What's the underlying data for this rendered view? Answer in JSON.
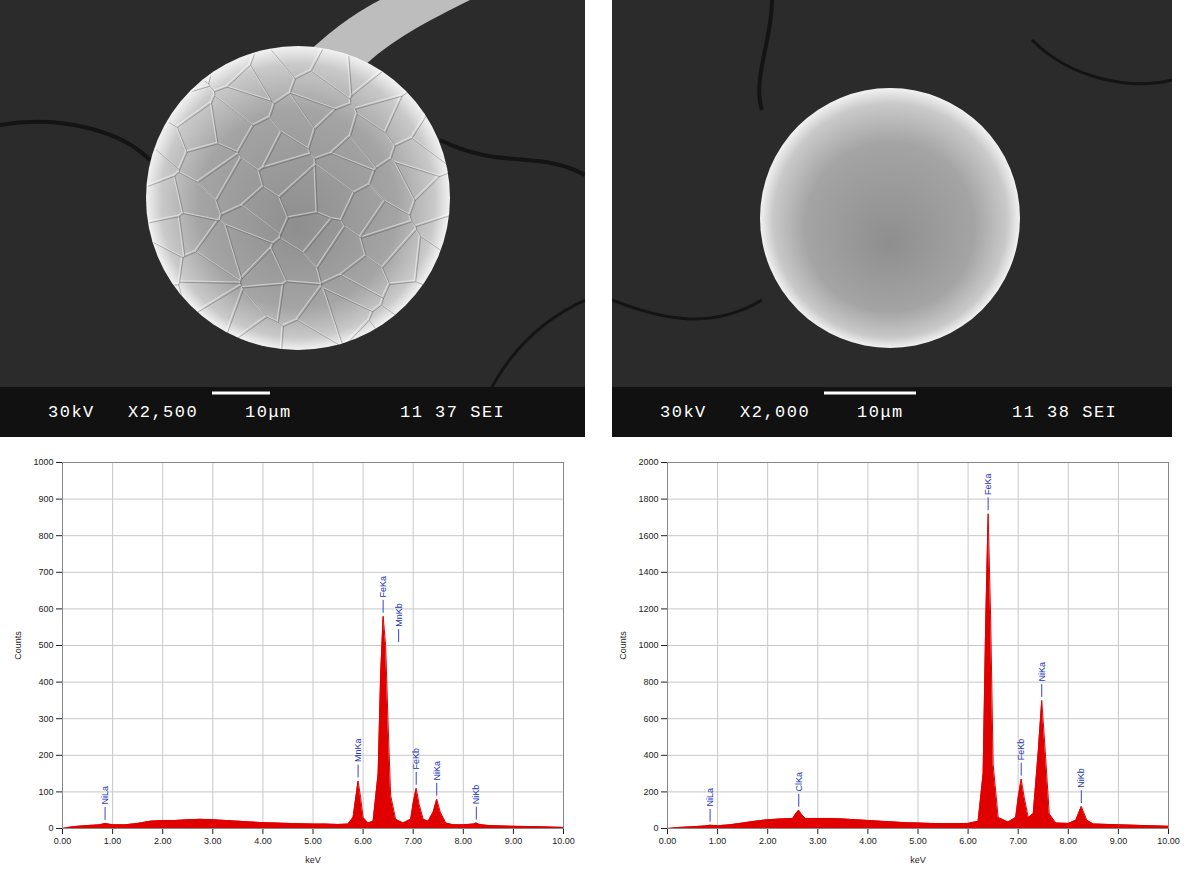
{
  "images": [
    {
      "labels": [
        "30kV",
        "X2,500",
        "10μm",
        "11 37 SEI"
      ]
    },
    {
      "labels": [
        "30kV",
        "X2,000",
        "10μm",
        "11 38 SEI"
      ]
    }
  ],
  "chart_data": [
    {
      "type": "area",
      "xlabel": "keV",
      "ylabel": "Counts",
      "color": "#e00000",
      "grid": true,
      "xlim": [
        0,
        10
      ],
      "ylim": [
        0,
        1000
      ],
      "xticks": [
        {
          "value": 0,
          "label": "0.00"
        },
        {
          "value": 1,
          "label": "1.00"
        },
        {
          "value": 2,
          "label": "2.00"
        },
        {
          "value": 3,
          "label": "3.00"
        },
        {
          "value": 4,
          "label": "4.00"
        },
        {
          "value": 5,
          "label": "5.00"
        },
        {
          "value": 6,
          "label": "6.00"
        },
        {
          "value": 7,
          "label": "7.00"
        },
        {
          "value": 8,
          "label": "8.00"
        },
        {
          "value": 9,
          "label": "9.00"
        },
        {
          "value": 10,
          "label": "10.00"
        }
      ],
      "yticks": [
        0,
        100,
        200,
        300,
        400,
        500,
        600,
        700,
        800,
        900,
        1000
      ],
      "x": [
        0.0,
        0.2,
        0.5,
        0.75,
        0.85,
        1.0,
        1.25,
        1.5,
        1.75,
        2.0,
        2.25,
        2.5,
        2.75,
        3.0,
        3.25,
        3.5,
        3.75,
        4.0,
        4.25,
        4.5,
        4.75,
        5.0,
        5.25,
        5.5,
        5.7,
        5.8,
        5.85,
        5.9,
        5.95,
        6.0,
        6.1,
        6.2,
        6.3,
        6.35,
        6.4,
        6.45,
        6.5,
        6.55,
        6.65,
        6.8,
        6.95,
        7.0,
        7.06,
        7.12,
        7.2,
        7.3,
        7.4,
        7.47,
        7.54,
        7.65,
        7.8,
        8.0,
        8.2,
        8.26,
        8.32,
        8.5,
        9.0,
        9.5,
        10.0
      ],
      "values": [
        0,
        5,
        8,
        10,
        14,
        10,
        10,
        14,
        20,
        22,
        22,
        24,
        25,
        24,
        22,
        20,
        18,
        16,
        15,
        14,
        13,
        12,
        12,
        11,
        12,
        30,
        80,
        130,
        85,
        30,
        15,
        20,
        150,
        420,
        580,
        500,
        280,
        90,
        25,
        15,
        25,
        70,
        110,
        65,
        25,
        20,
        45,
        80,
        45,
        15,
        10,
        10,
        12,
        15,
        11,
        8,
        6,
        5,
        3
      ],
      "annotations": [
        {
          "text": "NiLa",
          "x": 0.85
        },
        {
          "text": "MnKa",
          "x": 5.9
        },
        {
          "text": "FeKa",
          "x": 6.4
        },
        {
          "text": "MnKb",
          "x": 6.49
        },
        {
          "text": "FeKb",
          "x": 7.06
        },
        {
          "text": "NiKa",
          "x": 7.47
        },
        {
          "text": "NiKb",
          "x": 8.26
        }
      ]
    },
    {
      "type": "area",
      "xlabel": "keV",
      "ylabel": "Counts",
      "color": "#e00000",
      "grid": true,
      "xlim": [
        0,
        10
      ],
      "ylim": [
        0,
        2000
      ],
      "xticks": [
        {
          "value": 0,
          "label": "0.00"
        },
        {
          "value": 1,
          "label": "1.00"
        },
        {
          "value": 2,
          "label": "2.00"
        },
        {
          "value": 3,
          "label": "3.00"
        },
        {
          "value": 4,
          "label": "4.00"
        },
        {
          "value": 5,
          "label": "5.00"
        },
        {
          "value": 6,
          "label": "6.00"
        },
        {
          "value": 7,
          "label": "7.00"
        },
        {
          "value": 8,
          "label": "8.00"
        },
        {
          "value": 9,
          "label": "9.00"
        },
        {
          "value": 10,
          "label": "10.00"
        }
      ],
      "yticks": [
        0,
        200,
        400,
        600,
        800,
        1000,
        1200,
        1400,
        1600,
        1800,
        2000
      ],
      "x": [
        0.0,
        0.2,
        0.5,
        0.75,
        0.85,
        1.0,
        1.25,
        1.5,
        1.75,
        2.0,
        2.25,
        2.5,
        2.56,
        2.62,
        2.68,
        2.75,
        3.0,
        3.25,
        3.5,
        3.75,
        4.0,
        4.25,
        4.5,
        4.75,
        5.0,
        5.25,
        5.5,
        5.75,
        6.0,
        6.2,
        6.3,
        6.35,
        6.4,
        6.45,
        6.5,
        6.6,
        6.8,
        6.95,
        7.0,
        7.06,
        7.12,
        7.2,
        7.3,
        7.4,
        7.47,
        7.54,
        7.62,
        7.75,
        8.0,
        8.15,
        8.26,
        8.37,
        8.5,
        9.0,
        9.5,
        10.0
      ],
      "values": [
        0,
        5,
        10,
        14,
        18,
        15,
        20,
        30,
        40,
        48,
        52,
        55,
        80,
        100,
        75,
        55,
        55,
        55,
        52,
        48,
        44,
        40,
        36,
        32,
        30,
        28,
        27,
        27,
        28,
        40,
        300,
        1100,
        1720,
        1150,
        350,
        60,
        35,
        60,
        170,
        270,
        170,
        60,
        80,
        420,
        700,
        420,
        80,
        30,
        28,
        45,
        120,
        45,
        25,
        20,
        16,
        12
      ],
      "annotations": [
        {
          "text": "NiLa",
          "x": 0.85
        },
        {
          "text": "ClKa",
          "x": 2.62
        },
        {
          "text": "FeKa",
          "x": 6.4
        },
        {
          "text": "FeKb",
          "x": 7.06
        },
        {
          "text": "NiKa",
          "x": 7.47
        },
        {
          "text": "NiKb",
          "x": 8.26
        }
      ]
    }
  ]
}
